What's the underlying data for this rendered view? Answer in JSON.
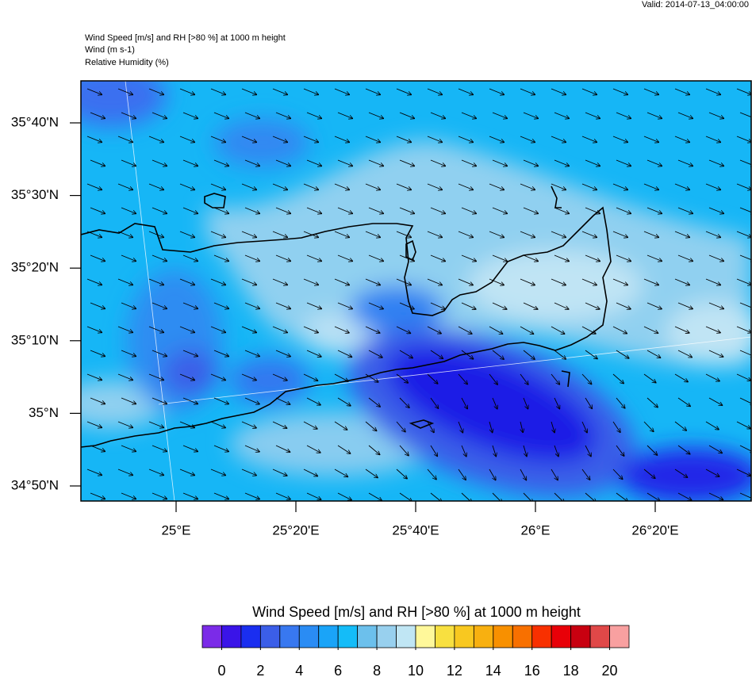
{
  "header": {
    "valid": "Valid: 2014-07-13_04:00:00",
    "lines": [
      "Wind Speed [m/s] and RH [>80 %] at 1000 m height",
      "Wind   (m s-1)",
      "Relative Humidity   (%)"
    ]
  },
  "map": {
    "lat_labels": [
      "35°40'N",
      "35°30'N",
      "35°20'N",
      "35°10'N",
      "35°N",
      "34°50'N"
    ],
    "lon_labels": [
      "25°E",
      "25°20'E",
      "25°40'E",
      "26°E",
      "26°20'E"
    ]
  },
  "colorbar": {
    "title": "Wind Speed [m/s] and RH [>80 %] at 1000 m height",
    "clim": [
      -1,
      21
    ],
    "colors": [
      "#7b2be8",
      "#3a14e8",
      "#1a2ef0",
      "#3b5ee8",
      "#3878f0",
      "#2a8cf4",
      "#1aa4f8",
      "#14bcf8",
      "#6cc0ec",
      "#98d0ee",
      "#c0e6f4",
      "#fff89a",
      "#f8e040",
      "#f8c820",
      "#f8b010",
      "#f89000",
      "#f87000",
      "#f83000",
      "#e80008",
      "#c80010",
      "#e04848",
      "#f8a0a0"
    ],
    "ticks": [
      0,
      2,
      4,
      6,
      8,
      10,
      12,
      14,
      16,
      18,
      20
    ]
  }
}
